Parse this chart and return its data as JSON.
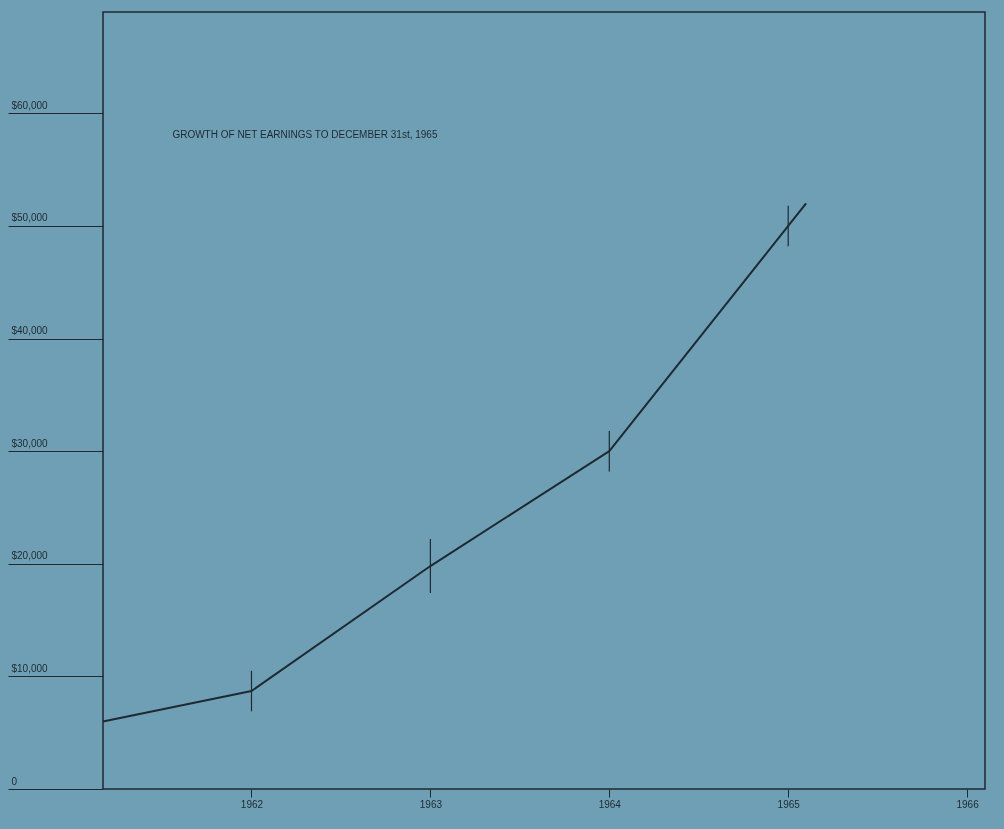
{
  "chart_data": {
    "type": "line",
    "title": "GROWTH OF NET EARNINGS TO DECEMBER 31st, 1965",
    "x": [
      1961.17,
      1962,
      1963,
      1964,
      1965,
      1965.1
    ],
    "series": [
      {
        "color": "#1e2a30",
        "values": [
          6000,
          8700,
          19800,
          30000,
          50000,
          52000
        ],
        "errors": [
          null,
          1800,
          2400,
          1800,
          1800,
          null
        ]
      }
    ],
    "xlim": [
      1961.17,
      1966.1
    ],
    "xticks": [
      1962,
      1963,
      1964,
      1965,
      1966
    ],
    "ylim": [
      0,
      69000
    ],
    "yticks": [
      {
        "value": 0,
        "label": "0"
      },
      {
        "value": 10000,
        "label": "$10,000"
      },
      {
        "value": 20000,
        "label": "$20,000"
      },
      {
        "value": 30000,
        "label": "$30,000"
      },
      {
        "value": 40000,
        "label": "$40,000"
      },
      {
        "value": 50000,
        "label": "$50,000"
      },
      {
        "value": 60000,
        "label": "$60,000"
      }
    ],
    "grid": false
  }
}
